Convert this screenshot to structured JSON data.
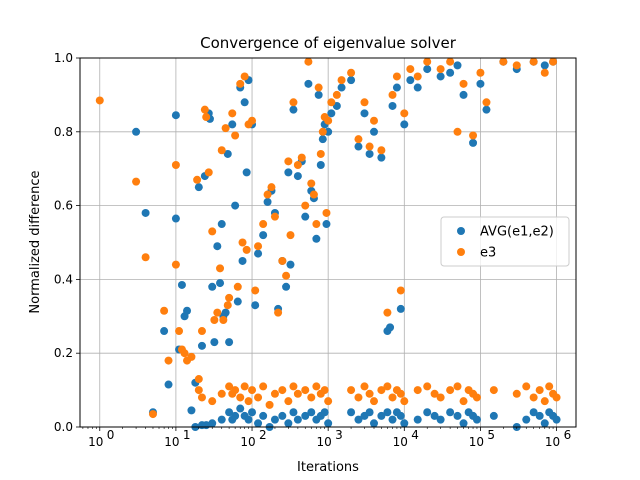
{
  "chart_data": {
    "type": "scatter",
    "title": "Convergence of eigenvalue solver",
    "xlabel": "Iterations",
    "ylabel": "Normalized difference",
    "xscale": "log",
    "xlim": [
      0.55,
      1800000
    ],
    "ylim": [
      0.0,
      1.0
    ],
    "grid": true,
    "legend_position": "center-right",
    "x_tick_labels": [
      {
        "value": 1,
        "base": "10",
        "exp": "0"
      },
      {
        "value": 10,
        "base": "10",
        "exp": "1"
      },
      {
        "value": 100,
        "base": "10",
        "exp": "2"
      },
      {
        "value": 1000,
        "base": "10",
        "exp": "3"
      },
      {
        "value": 10000,
        "base": "10",
        "exp": "4"
      },
      {
        "value": 100000,
        "base": "10",
        "exp": "5"
      },
      {
        "value": 1000000,
        "base": "10",
        "exp": "6"
      }
    ],
    "y_ticks": [
      0.0,
      0.2,
      0.4,
      0.6,
      0.8,
      1.0
    ],
    "y_tick_labels": [
      "0.0",
      "0.2",
      "0.4",
      "0.6",
      "0.8",
      "1.0"
    ],
    "series": [
      {
        "name": "AVG(e1,e2)",
        "color": "#1f77b4",
        "points": [
          [
            3,
            0.8
          ],
          [
            4,
            0.58
          ],
          [
            5,
            0.04
          ],
          [
            7,
            0.26
          ],
          [
            8,
            0.115
          ],
          [
            10,
            0.845
          ],
          [
            10,
            0.565
          ],
          [
            11,
            0.21
          ],
          [
            12,
            0.385
          ],
          [
            13,
            0.3
          ],
          [
            14,
            0.315
          ],
          [
            16,
            0.045
          ],
          [
            18,
            0.12
          ],
          [
            20,
            0.65
          ],
          [
            22,
            0.22
          ],
          [
            24,
            0.68
          ],
          [
            25,
            0.005
          ],
          [
            27,
            0.85
          ],
          [
            28,
            0.835
          ],
          [
            30,
            0.38
          ],
          [
            32,
            0.23
          ],
          [
            35,
            0.49
          ],
          [
            38,
            0.39
          ],
          [
            40,
            0.55
          ],
          [
            42,
            0.3
          ],
          [
            45,
            0.31
          ],
          [
            48,
            0.74
          ],
          [
            50,
            0.23
          ],
          [
            55,
            0.82
          ],
          [
            60,
            0.6
          ],
          [
            65,
            0.34
          ],
          [
            70,
            0.92
          ],
          [
            75,
            0.45
          ],
          [
            80,
            0.88
          ],
          [
            85,
            0.69
          ],
          [
            90,
            0.94
          ],
          [
            100,
            0.82
          ],
          [
            110,
            0.33
          ],
          [
            120,
            0.47
          ],
          [
            140,
            0.52
          ],
          [
            160,
            0.61
          ],
          [
            180,
            0.64
          ],
          [
            200,
            0.58
          ],
          [
            220,
            0.32
          ],
          [
            250,
            0.45
          ],
          [
            280,
            0.38
          ],
          [
            300,
            0.69
          ],
          [
            320,
            0.44
          ],
          [
            350,
            0.86
          ],
          [
            400,
            0.68
          ],
          [
            450,
            0.72
          ],
          [
            500,
            0.57
          ],
          [
            550,
            0.93
          ],
          [
            600,
            0.64
          ],
          [
            650,
            0.62
          ],
          [
            700,
            0.51
          ],
          [
            750,
            0.9
          ],
          [
            800,
            0.71
          ],
          [
            850,
            0.78
          ],
          [
            900,
            0.82
          ],
          [
            950,
            0.55
          ],
          [
            1000,
            0.8
          ],
          [
            1100,
            0.85
          ],
          [
            1300,
            0.87
          ],
          [
            1500,
            0.92
          ],
          [
            2000,
            0.94
          ],
          [
            2500,
            0.76
          ],
          [
            3000,
            0.85
          ],
          [
            3500,
            0.74
          ],
          [
            4000,
            0.8
          ],
          [
            5000,
            0.73
          ],
          [
            6000,
            0.26
          ],
          [
            6500,
            0.27
          ],
          [
            7000,
            0.87
          ],
          [
            8000,
            0.92
          ],
          [
            9000,
            0.32
          ],
          [
            10000,
            0.82
          ],
          [
            12000,
            0.94
          ],
          [
            15000,
            0.92
          ],
          [
            20000,
            0.97
          ],
          [
            30000,
            0.95
          ],
          [
            40000,
            0.96
          ],
          [
            50000,
            0.98
          ],
          [
            60000,
            0.9
          ],
          [
            80000,
            0.77
          ],
          [
            100000,
            0.93
          ],
          [
            120000,
            0.86
          ],
          [
            200000,
            0.99
          ],
          [
            300000,
            0.97
          ],
          [
            500000,
            0.99
          ],
          [
            700000,
            0.98
          ],
          [
            900000,
            0.99
          ],
          [
            18,
            0.0
          ],
          [
            22,
            0.005
          ],
          [
            30,
            0.01
          ],
          [
            40,
            0.02
          ],
          [
            50,
            0.04
          ],
          [
            55,
            0.02
          ],
          [
            60,
            0.03
          ],
          [
            70,
            0.05
          ],
          [
            80,
            0.03
          ],
          [
            90,
            0.02
          ],
          [
            100,
            0.04
          ],
          [
            120,
            0.01
          ],
          [
            140,
            0.03
          ],
          [
            170,
            0.0
          ],
          [
            200,
            0.02
          ],
          [
            250,
            0.03
          ],
          [
            300,
            0.01
          ],
          [
            350,
            0.04
          ],
          [
            400,
            0.02
          ],
          [
            500,
            0.03
          ],
          [
            600,
            0.04
          ],
          [
            700,
            0.02
          ],
          [
            800,
            0.03
          ],
          [
            900,
            0.04
          ],
          [
            1000,
            0.01
          ],
          [
            2000,
            0.04
          ],
          [
            2500,
            0.02
          ],
          [
            3000,
            0.03
          ],
          [
            3500,
            0.04
          ],
          [
            4000,
            0.01
          ],
          [
            5000,
            0.03
          ],
          [
            6000,
            0.04
          ],
          [
            7000,
            0.02
          ],
          [
            8000,
            0.04
          ],
          [
            9000,
            0.03
          ],
          [
            10000,
            0.01
          ],
          [
            15000,
            0.02
          ],
          [
            20000,
            0.04
          ],
          [
            25000,
            0.03
          ],
          [
            30000,
            0.02
          ],
          [
            40000,
            0.04
          ],
          [
            50000,
            0.03
          ],
          [
            60000,
            0.01
          ],
          [
            70000,
            0.04
          ],
          [
            80000,
            0.03
          ],
          [
            90000,
            0.02
          ],
          [
            150000,
            0.03
          ],
          [
            300000,
            0.0
          ],
          [
            400000,
            0.02
          ],
          [
            500000,
            0.04
          ],
          [
            600000,
            0.03
          ],
          [
            700000,
            0.01
          ],
          [
            800000,
            0.04
          ],
          [
            900000,
            0.03
          ],
          [
            1000000,
            0.02
          ]
        ]
      },
      {
        "name": "e3",
        "color": "#ff7f0e",
        "points": [
          [
            1,
            0.885
          ],
          [
            3,
            0.665
          ],
          [
            4,
            0.46
          ],
          [
            5,
            0.035
          ],
          [
            7,
            0.315
          ],
          [
            8,
            0.18
          ],
          [
            10,
            0.71
          ],
          [
            10,
            0.44
          ],
          [
            11,
            0.26
          ],
          [
            12,
            0.21
          ],
          [
            13,
            0.2
          ],
          [
            14,
            0.18
          ],
          [
            16,
            0.19
          ],
          [
            19,
            0.67
          ],
          [
            20,
            0.13
          ],
          [
            22,
            0.26
          ],
          [
            24,
            0.86
          ],
          [
            25,
            0.84
          ],
          [
            27,
            0.69
          ],
          [
            30,
            0.53
          ],
          [
            32,
            0.29
          ],
          [
            35,
            0.31
          ],
          [
            38,
            0.43
          ],
          [
            40,
            0.75
          ],
          [
            42,
            0.29
          ],
          [
            45,
            0.81
          ],
          [
            48,
            0.33
          ],
          [
            50,
            0.35
          ],
          [
            55,
            0.85
          ],
          [
            60,
            0.79
          ],
          [
            65,
            0.38
          ],
          [
            70,
            0.93
          ],
          [
            75,
            0.5
          ],
          [
            80,
            0.95
          ],
          [
            85,
            0.48
          ],
          [
            90,
            0.82
          ],
          [
            100,
            0.83
          ],
          [
            110,
            0.37
          ],
          [
            120,
            0.49
          ],
          [
            140,
            0.55
          ],
          [
            160,
            0.63
          ],
          [
            180,
            0.65
          ],
          [
            200,
            0.57
          ],
          [
            220,
            0.31
          ],
          [
            250,
            0.45
          ],
          [
            280,
            0.41
          ],
          [
            300,
            0.72
          ],
          [
            320,
            0.52
          ],
          [
            350,
            0.88
          ],
          [
            400,
            0.71
          ],
          [
            450,
            0.73
          ],
          [
            500,
            0.6
          ],
          [
            550,
            0.99
          ],
          [
            600,
            0.66
          ],
          [
            650,
            0.63
          ],
          [
            700,
            0.55
          ],
          [
            750,
            0.92
          ],
          [
            800,
            0.74
          ],
          [
            850,
            0.8
          ],
          [
            900,
            0.84
          ],
          [
            950,
            0.58
          ],
          [
            1000,
            0.83
          ],
          [
            1100,
            0.88
          ],
          [
            1300,
            0.9
          ],
          [
            1500,
            0.94
          ],
          [
            2000,
            0.96
          ],
          [
            2500,
            0.78
          ],
          [
            3000,
            0.88
          ],
          [
            3500,
            0.76
          ],
          [
            4000,
            0.83
          ],
          [
            5000,
            0.75
          ],
          [
            6000,
            0.31
          ],
          [
            7000,
            0.9
          ],
          [
            8000,
            0.95
          ],
          [
            9000,
            0.37
          ],
          [
            10000,
            0.85
          ],
          [
            12000,
            0.97
          ],
          [
            15000,
            0.95
          ],
          [
            20000,
            0.99
          ],
          [
            30000,
            0.97
          ],
          [
            40000,
            0.99
          ],
          [
            50000,
            0.8
          ],
          [
            60000,
            0.93
          ],
          [
            80000,
            0.79
          ],
          [
            100000,
            0.96
          ],
          [
            120000,
            0.88
          ],
          [
            200000,
            0.99
          ],
          [
            300000,
            0.98
          ],
          [
            500000,
            0.99
          ],
          [
            700000,
            0.96
          ],
          [
            900000,
            0.99
          ],
          [
            20,
            0.1
          ],
          [
            22,
            0.08
          ],
          [
            30,
            0.07
          ],
          [
            40,
            0.09
          ],
          [
            50,
            0.11
          ],
          [
            55,
            0.09
          ],
          [
            60,
            0.1
          ],
          [
            70,
            0.08
          ],
          [
            80,
            0.11
          ],
          [
            90,
            0.07
          ],
          [
            100,
            0.1
          ],
          [
            120,
            0.08
          ],
          [
            140,
            0.11
          ],
          [
            170,
            0.06
          ],
          [
            200,
            0.09
          ],
          [
            250,
            0.1
          ],
          [
            300,
            0.07
          ],
          [
            350,
            0.11
          ],
          [
            400,
            0.09
          ],
          [
            500,
            0.1
          ],
          [
            600,
            0.08
          ],
          [
            700,
            0.11
          ],
          [
            800,
            0.09
          ],
          [
            900,
            0.1
          ],
          [
            1000,
            0.07
          ],
          [
            2000,
            0.1
          ],
          [
            2500,
            0.08
          ],
          [
            3000,
            0.11
          ],
          [
            3500,
            0.09
          ],
          [
            4000,
            0.07
          ],
          [
            5000,
            0.1
          ],
          [
            6000,
            0.11
          ],
          [
            7000,
            0.08
          ],
          [
            8000,
            0.1
          ],
          [
            9000,
            0.09
          ],
          [
            10000,
            0.07
          ],
          [
            15000,
            0.1
          ],
          [
            20000,
            0.11
          ],
          [
            25000,
            0.09
          ],
          [
            30000,
            0.08
          ],
          [
            40000,
            0.1
          ],
          [
            50000,
            0.11
          ],
          [
            60000,
            0.07
          ],
          [
            70000,
            0.1
          ],
          [
            80000,
            0.09
          ],
          [
            90000,
            0.08
          ],
          [
            150000,
            0.1
          ],
          [
            300000,
            0.09
          ],
          [
            400000,
            0.11
          ],
          [
            500000,
            0.08
          ],
          [
            600000,
            0.1
          ],
          [
            700000,
            0.07
          ],
          [
            800000,
            0.11
          ],
          [
            900000,
            0.09
          ],
          [
            1000000,
            0.08
          ]
        ]
      }
    ]
  }
}
